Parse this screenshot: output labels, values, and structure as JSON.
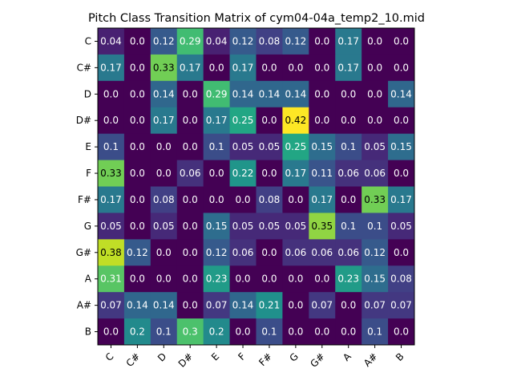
{
  "chart_data": {
    "type": "heatmap",
    "title": "Pitch Class Transition Matrix of cym04-04a_temp2_10.mid",
    "xlabel": "",
    "ylabel": "",
    "x_categories": [
      "C",
      "C#",
      "D",
      "D#",
      "E",
      "F",
      "F#",
      "G",
      "G#",
      "A",
      "A#",
      "B"
    ],
    "y_categories": [
      "C",
      "C#",
      "D",
      "D#",
      "E",
      "F",
      "F#",
      "G",
      "G#",
      "A",
      "A#",
      "B"
    ],
    "colormap": "viridis",
    "value_range": [
      0.0,
      0.42
    ],
    "grid": false,
    "values": [
      [
        "0.04",
        "0.0",
        "0.12",
        "0.29",
        "0.04",
        "0.12",
        "0.08",
        "0.12",
        "0.0",
        "0.17",
        "0.0",
        "0.0"
      ],
      [
        "0.17",
        "0.0",
        "0.33",
        "0.17",
        "0.0",
        "0.17",
        "0.0",
        "0.0",
        "0.0",
        "0.17",
        "0.0",
        "0.0"
      ],
      [
        "0.0",
        "0.0",
        "0.14",
        "0.0",
        "0.29",
        "0.14",
        "0.14",
        "0.14",
        "0.0",
        "0.0",
        "0.0",
        "0.14"
      ],
      [
        "0.0",
        "0.0",
        "0.17",
        "0.0",
        "0.17",
        "0.25",
        "0.0",
        "0.42",
        "0.0",
        "0.0",
        "0.0",
        "0.0"
      ],
      [
        "0.1",
        "0.0",
        "0.0",
        "0.0",
        "0.1",
        "0.05",
        "0.05",
        "0.25",
        "0.15",
        "0.1",
        "0.05",
        "0.15"
      ],
      [
        "0.33",
        "0.0",
        "0.0",
        "0.06",
        "0.0",
        "0.22",
        "0.0",
        "0.17",
        "0.11",
        "0.06",
        "0.06",
        "0.0"
      ],
      [
        "0.17",
        "0.0",
        "0.08",
        "0.0",
        "0.0",
        "0.0",
        "0.08",
        "0.0",
        "0.17",
        "0.0",
        "0.33",
        "0.17"
      ],
      [
        "0.05",
        "0.0",
        "0.05",
        "0.0",
        "0.15",
        "0.05",
        "0.05",
        "0.05",
        "0.35",
        "0.1",
        "0.1",
        "0.05"
      ],
      [
        "0.38",
        "0.12",
        "0.0",
        "0.0",
        "0.12",
        "0.06",
        "0.0",
        "0.06",
        "0.06",
        "0.06",
        "0.12",
        "0.0"
      ],
      [
        "0.31",
        "0.0",
        "0.0",
        "0.0",
        "0.23",
        "0.0",
        "0.0",
        "0.0",
        "0.0",
        "0.23",
        "0.15",
        "0.08"
      ],
      [
        "0.07",
        "0.14",
        "0.14",
        "0.0",
        "0.07",
        "0.14",
        "0.21",
        "0.0",
        "0.07",
        "0.0",
        "0.07",
        "0.07"
      ],
      [
        "0.0",
        "0.2",
        "0.1",
        "0.3",
        "0.2",
        "0.0",
        "0.1",
        "0.0",
        "0.0",
        "0.0",
        "0.1",
        "0.0"
      ]
    ]
  }
}
